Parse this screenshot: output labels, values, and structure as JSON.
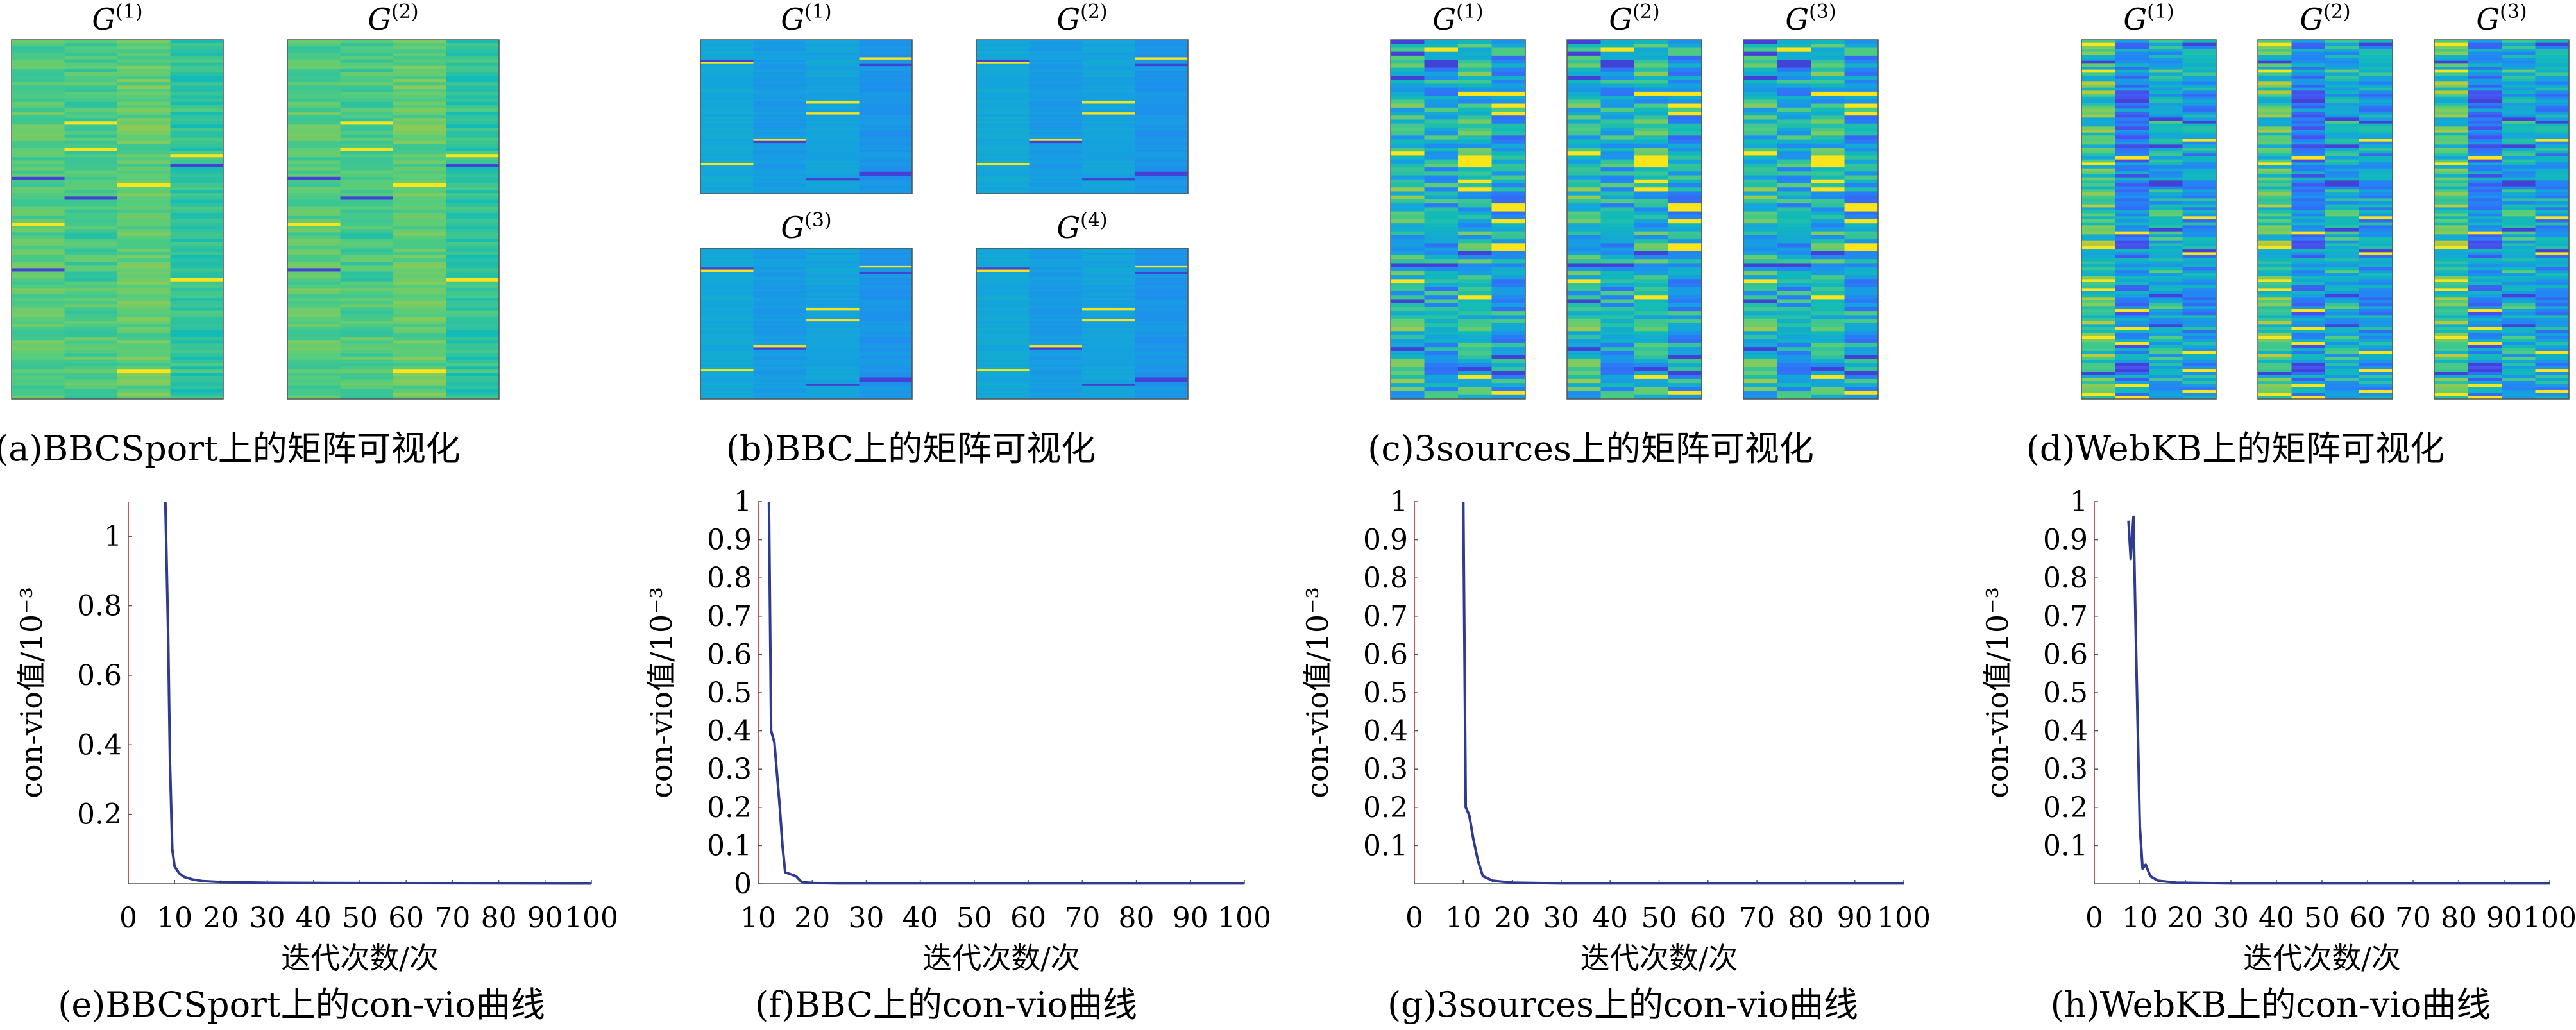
{
  "captions": {
    "a": "(a)BBCSport上的矩阵可视化",
    "b": "(b)BBC上的矩阵可视化",
    "c": "(c)3sources上的矩阵可视化",
    "d": "(d)WebKB上的矩阵可视化",
    "e": "(e)BBCSport上的con-vio曲线",
    "f": "(f)BBC上的con-vio曲线",
    "g": "(g)3sources上的con-vio曲线",
    "h": "(h)WebKB上的con-vio曲线"
  },
  "matrix_panels": [
    {
      "id": "a",
      "dataset": "BBCSport",
      "matrices": [
        "G(1)",
        "G(2)"
      ],
      "columns": 4,
      "colormap": "parula"
    },
    {
      "id": "b",
      "dataset": "BBC",
      "matrices": [
        "G(1)",
        "G(2)",
        "G(3)",
        "G(4)"
      ],
      "columns": 4,
      "colormap": "parula"
    },
    {
      "id": "c",
      "dataset": "3sources",
      "matrices": [
        "G(1)",
        "G(2)",
        "G(3)"
      ],
      "columns": 4,
      "colormap": "parula"
    },
    {
      "id": "d",
      "dataset": "WebKB",
      "matrices": [
        "G(1)",
        "G(2)",
        "G(3)"
      ],
      "columns": 4,
      "colormap": "parula"
    }
  ],
  "matrix_label_base": "G",
  "colors": {
    "line": "#2e3b91",
    "axis": "#555555",
    "spine_left": "#a52a2a"
  },
  "chart_data": [
    {
      "id": "e",
      "type": "line",
      "title": "",
      "xlabel": "迭代次数/次",
      "ylabel": "con-vio值/10⁻³",
      "xlim": [
        0,
        100
      ],
      "ylim": [
        0,
        1.1
      ],
      "xticks": [
        0,
        10,
        20,
        30,
        40,
        50,
        60,
        70,
        80,
        90,
        100
      ],
      "yticks": [
        0.2,
        0.4,
        0.6,
        0.8,
        1.0
      ],
      "series": [
        {
          "x": [
            8,
            8.6,
            9,
            9.5,
            10,
            11,
            12,
            14,
            16,
            20,
            30,
            50,
            100
          ],
          "y": [
            1.1,
            0.72,
            0.35,
            0.1,
            0.05,
            0.03,
            0.02,
            0.012,
            0.008,
            0.005,
            0.003,
            0.002,
            0.001
          ]
        }
      ]
    },
    {
      "id": "f",
      "type": "line",
      "title": "",
      "xlabel": "迭代次数/次",
      "ylabel": "con-vio值/10⁻³",
      "xlim": [
        10,
        100
      ],
      "ylim": [
        0,
        1.0
      ],
      "xticks": [
        10,
        20,
        30,
        40,
        50,
        60,
        70,
        80,
        90,
        100
      ],
      "yticks": [
        0,
        0.1,
        0.2,
        0.3,
        0.4,
        0.5,
        0.6,
        0.7,
        0.8,
        0.9,
        1.0
      ],
      "series": [
        {
          "x": [
            12,
            12.4,
            13,
            14,
            14.5,
            15,
            17,
            18,
            20,
            25,
            100
          ],
          "y": [
            1.0,
            0.4,
            0.37,
            0.2,
            0.1,
            0.03,
            0.02,
            0.005,
            0.002,
            0.001,
            0.001
          ]
        }
      ]
    },
    {
      "id": "g",
      "type": "line",
      "title": "",
      "xlabel": "迭代次数/次",
      "ylabel": "con-vio值/10⁻³",
      "xlim": [
        0,
        100
      ],
      "ylim": [
        0,
        1.0
      ],
      "xticks": [
        0,
        10,
        20,
        30,
        40,
        50,
        60,
        70,
        80,
        90,
        100
      ],
      "yticks": [
        0.1,
        0.2,
        0.3,
        0.4,
        0.5,
        0.6,
        0.7,
        0.8,
        0.9,
        1.0
      ],
      "series": [
        {
          "x": [
            10,
            10.5,
            11.2,
            12,
            13,
            14,
            16,
            20,
            30,
            100
          ],
          "y": [
            1.0,
            0.2,
            0.18,
            0.12,
            0.06,
            0.02,
            0.008,
            0.003,
            0.001,
            0.001
          ]
        }
      ]
    },
    {
      "id": "h",
      "type": "line",
      "title": "",
      "xlabel": "迭代次数/次",
      "ylabel": "con-vio值/10⁻³",
      "xlim": [
        0,
        100
      ],
      "ylim": [
        0,
        1.0
      ],
      "xticks": [
        0,
        10,
        20,
        30,
        40,
        50,
        60,
        70,
        80,
        90,
        100
      ],
      "yticks": [
        0.1,
        0.2,
        0.3,
        0.4,
        0.5,
        0.6,
        0.7,
        0.8,
        0.9,
        1.0
      ],
      "series": [
        {
          "x": [
            7.5,
            8,
            8.6,
            9.2,
            10,
            10.6,
            11.3,
            12.3,
            14,
            18,
            30,
            100
          ],
          "y": [
            0.95,
            0.85,
            0.96,
            0.6,
            0.15,
            0.04,
            0.05,
            0.02,
            0.008,
            0.003,
            0.001,
            0.001
          ]
        }
      ]
    }
  ]
}
